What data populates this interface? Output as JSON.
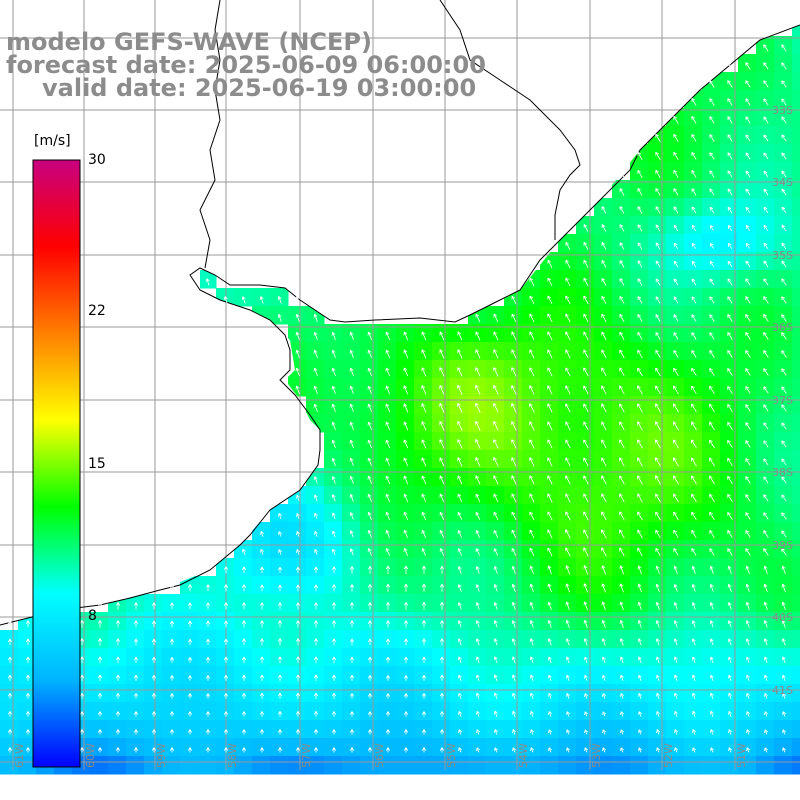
{
  "title": {
    "line1": "modelo GEFS-WAVE (NCEP)",
    "line2": "forecast date: 2025-06-09 06:00:00",
    "line3": "valid date: 2025-06-19 03:00:00"
  },
  "colorbar": {
    "unit": "[m/s]",
    "min": 0,
    "max": 30,
    "ticks": [
      "30",
      "22",
      "15",
      "8"
    ],
    "tick_values": [
      30,
      22,
      15,
      8
    ],
    "colors": [
      "#0000ff",
      "#00b4ff",
      "#00ffff",
      "#00ff00",
      "#ffff00",
      "#ff7f00",
      "#ff0000",
      "#c8007f"
    ]
  },
  "map": {
    "lat_labels": [
      "33S",
      "34S",
      "35S",
      "36S",
      "37S",
      "38S",
      "39S",
      "40S",
      "41S"
    ],
    "lon_labels": [
      "61W",
      "60W",
      "59W",
      "58W",
      "57W",
      "56W",
      "55W",
      "54W",
      "53W",
      "52W",
      "51W"
    ],
    "land_color": "#ffffff",
    "coast_color": "#000000",
    "grid_color": "#9a9a9a",
    "arrow_color": "#ffffff",
    "field": "wind speed and direction (m/s)"
  }
}
